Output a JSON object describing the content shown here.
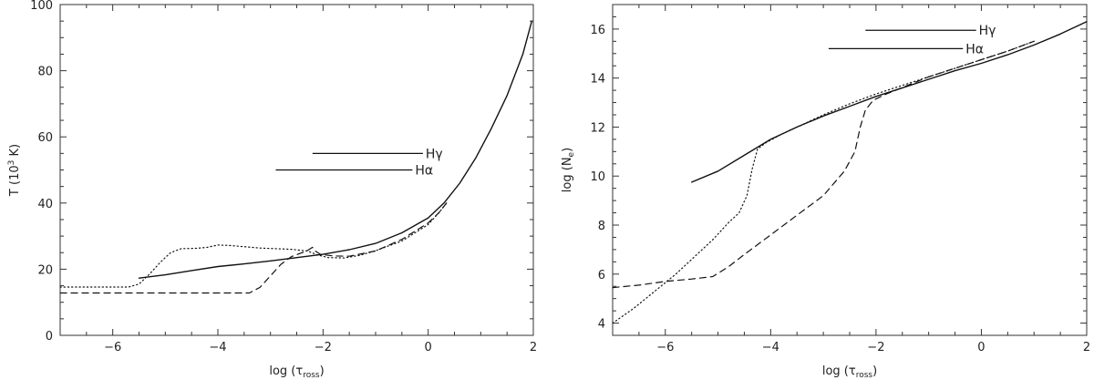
{
  "chart_data": [
    {
      "type": "line",
      "xlabel": "log (τ",
      "xlabel_sub": "ross",
      "xlabel_tail": ")",
      "ylabel": "T (10",
      "ylabel_sup": "3",
      "ylabel_tail": " K)",
      "xlim": [
        -7,
        2
      ],
      "ylim": [
        0,
        100
      ],
      "xticks": [
        -6,
        -4,
        -2,
        0,
        2
      ],
      "yticks": [
        0,
        20,
        40,
        60,
        80,
        100
      ],
      "xtick_labels": [
        "−6",
        "−4",
        "−2",
        "0",
        "2"
      ],
      "ytick_labels": [
        "0",
        "20",
        "40",
        "60",
        "80",
        "100"
      ],
      "grid": false,
      "series": [
        {
          "style": "solid",
          "points": [
            [
              -5.5,
              17.3
            ],
            [
              -5,
              18.3
            ],
            [
              -4.5,
              19.6
            ],
            [
              -4,
              20.8
            ],
            [
              -3.5,
              21.6
            ],
            [
              -3,
              22.5
            ],
            [
              -2.5,
              23.5
            ],
            [
              -2,
              24.5
            ],
            [
              -1.5,
              25.9
            ],
            [
              -1,
              27.8
            ],
            [
              -0.5,
              31
            ],
            [
              0,
              35.5
            ],
            [
              0.3,
              40
            ],
            [
              0.6,
              46
            ],
            [
              0.9,
              53.5
            ],
            [
              1.2,
              62.5
            ],
            [
              1.5,
              72.5
            ],
            [
              1.8,
              85
            ],
            [
              1.97,
              95
            ]
          ]
        },
        {
          "style": "dotted",
          "points": [
            [
              -7,
              14.6
            ],
            [
              -5.7,
              14.6
            ],
            [
              -5.5,
              15.5
            ],
            [
              -5.3,
              18.5
            ],
            [
              -5.1,
              22
            ],
            [
              -4.9,
              25
            ],
            [
              -4.7,
              26.2
            ],
            [
              -4.4,
              26.3
            ],
            [
              -4.2,
              26.6
            ],
            [
              -4,
              27.3
            ],
            [
              -3.8,
              27.2
            ],
            [
              -3.5,
              26.8
            ],
            [
              -3.2,
              26.4
            ],
            [
              -2.9,
              26.2
            ],
            [
              -2.6,
              26
            ],
            [
              -2.3,
              25.5
            ],
            [
              -2.1,
              24.3
            ],
            [
              -1.9,
              23.5
            ],
            [
              -1.6,
              23.4
            ],
            [
              -1.3,
              24.2
            ],
            [
              -1,
              25.6
            ],
            [
              -0.5,
              28.5
            ],
            [
              0,
              33.5
            ],
            [
              0.2,
              37
            ],
            [
              0.35,
              40
            ]
          ]
        },
        {
          "style": "dashed",
          "points": [
            [
              -7,
              12.8
            ],
            [
              -5.5,
              12.8
            ],
            [
              -4.5,
              12.8
            ],
            [
              -3.4,
              12.8
            ],
            [
              -3.2,
              14.5
            ],
            [
              -3,
              18
            ],
            [
              -2.8,
              21.5
            ],
            [
              -2.6,
              23.8
            ],
            [
              -2.4,
              25
            ],
            [
              -2.3,
              25.6
            ],
            [
              -2.2,
              26.6
            ],
            [
              -2.15,
              25.5
            ],
            [
              -2.05,
              24.5
            ],
            [
              -1.8,
              24
            ],
            [
              -1.5,
              23.9
            ],
            [
              -1,
              25.5
            ],
            [
              -0.5,
              29
            ],
            [
              0,
              34
            ],
            [
              0.2,
              37
            ],
            [
              0.35,
              40
            ]
          ]
        }
      ],
      "annotations": [
        {
          "label": "Hγ",
          "x1": -2.2,
          "x2": -0.1,
          "y": 55
        },
        {
          "label": "Hα",
          "x1": -2.9,
          "x2": -0.3,
          "y": 50
        }
      ]
    },
    {
      "type": "line",
      "xlabel": "log (τ",
      "xlabel_sub": "ross",
      "xlabel_tail": ")",
      "ylabel": "log (N",
      "ylabel_sub": "e",
      "ylabel_tail": ")",
      "xlim": [
        -7,
        2
      ],
      "ylim": [
        3.5,
        17
      ],
      "xticks": [
        -6,
        -4,
        -2,
        0,
        2
      ],
      "yticks": [
        4,
        6,
        8,
        10,
        12,
        14,
        16
      ],
      "xtick_labels": [
        "−6",
        "−4",
        "−2",
        "0",
        "2"
      ],
      "ytick_labels": [
        "4",
        "6",
        "8",
        "10",
        "12",
        "14",
        "16"
      ],
      "grid": false,
      "series": [
        {
          "style": "solid",
          "points": [
            [
              -5.5,
              9.75
            ],
            [
              -5,
              10.2
            ],
            [
              -4.5,
              10.85
            ],
            [
              -4,
              11.5
            ],
            [
              -3.5,
              12.0
            ],
            [
              -3,
              12.45
            ],
            [
              -2.5,
              12.85
            ],
            [
              -2,
              13.25
            ],
            [
              -1.5,
              13.6
            ],
            [
              -1,
              13.95
            ],
            [
              -0.5,
              14.3
            ],
            [
              0,
              14.6
            ],
            [
              0.5,
              14.95
            ],
            [
              1,
              15.35
            ],
            [
              1.5,
              15.8
            ],
            [
              2,
              16.3
            ]
          ]
        },
        {
          "style": "dotted",
          "points": [
            [
              -7,
              4.0
            ],
            [
              -6.6,
              4.6
            ],
            [
              -6.2,
              5.3
            ],
            [
              -5.8,
              6.0
            ],
            [
              -5.5,
              6.6
            ],
            [
              -5.1,
              7.4
            ],
            [
              -4.8,
              8.1
            ],
            [
              -4.6,
              8.5
            ],
            [
              -4.45,
              9.2
            ],
            [
              -4.35,
              10.3
            ],
            [
              -4.25,
              11.1
            ],
            [
              -4.1,
              11.35
            ],
            [
              -3.8,
              11.7
            ],
            [
              -3.4,
              12.1
            ],
            [
              -3,
              12.5
            ],
            [
              -2.5,
              12.95
            ],
            [
              -2,
              13.35
            ],
            [
              -1.5,
              13.7
            ],
            [
              -1,
              14.05
            ],
            [
              -0.5,
              14.4
            ],
            [
              0,
              14.75
            ],
            [
              0.5,
              15.1
            ],
            [
              1,
              15.5
            ]
          ]
        },
        {
          "style": "dashed",
          "points": [
            [
              -7,
              5.45
            ],
            [
              -6.5,
              5.55
            ],
            [
              -6,
              5.7
            ],
            [
              -5.5,
              5.8
            ],
            [
              -5.1,
              5.9
            ],
            [
              -4.8,
              6.3
            ],
            [
              -4.5,
              6.8
            ],
            [
              -4,
              7.6
            ],
            [
              -3.5,
              8.4
            ],
            [
              -3,
              9.2
            ],
            [
              -2.6,
              10.2
            ],
            [
              -2.4,
              11.0
            ],
            [
              -2.3,
              12.0
            ],
            [
              -2.2,
              12.7
            ],
            [
              -2.05,
              13.1
            ],
            [
              -1.8,
              13.35
            ],
            [
              -1.4,
              13.7
            ],
            [
              -1,
              14.05
            ],
            [
              -0.5,
              14.4
            ],
            [
              0,
              14.75
            ],
            [
              0.5,
              15.1
            ],
            [
              1,
              15.5
            ]
          ]
        }
      ],
      "annotations": [
        {
          "label": "Hγ",
          "x1": -2.2,
          "x2": -0.1,
          "y": 15.95
        },
        {
          "label": "Hα",
          "x1": -2.9,
          "x2": -0.35,
          "y": 15.2
        }
      ]
    }
  ]
}
